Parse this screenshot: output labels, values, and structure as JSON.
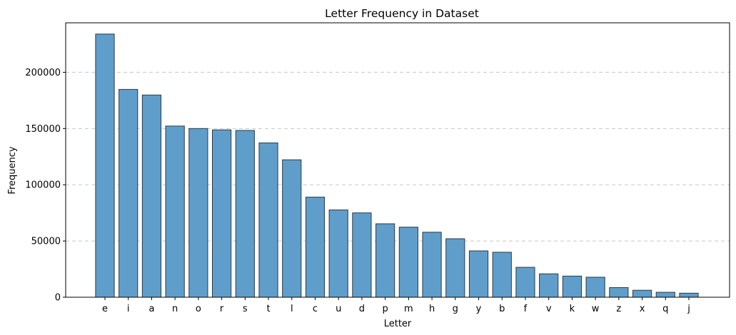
{
  "chart_data": {
    "type": "bar",
    "title": "Letter Frequency in Dataset",
    "xlabel": "Letter",
    "ylabel": "Frequency",
    "categories": [
      "e",
      "i",
      "a",
      "n",
      "o",
      "r",
      "s",
      "t",
      "l",
      "c",
      "u",
      "d",
      "p",
      "m",
      "h",
      "g",
      "y",
      "b",
      "f",
      "v",
      "k",
      "w",
      "z",
      "x",
      "q",
      "j"
    ],
    "values": [
      234000,
      184800,
      179800,
      152200,
      150000,
      148800,
      148300,
      137200,
      122200,
      89000,
      77600,
      75000,
      65300,
      62300,
      57800,
      52000,
      41200,
      40000,
      26600,
      20800,
      18800,
      17800,
      8600,
      6200,
      4400,
      3600
    ],
    "ylim": [
      0,
      244000
    ],
    "yticks": [
      0,
      50000,
      100000,
      150000,
      200000
    ],
    "ytick_labels": [
      "0",
      "50000",
      "100000",
      "150000",
      "200000"
    ],
    "grid": "y-dashed",
    "colors": {
      "bar_fill": "#5f9ecb",
      "bar_edge": "#2b3a46",
      "grid": "#c8c8c8",
      "axis": "#000000"
    }
  }
}
